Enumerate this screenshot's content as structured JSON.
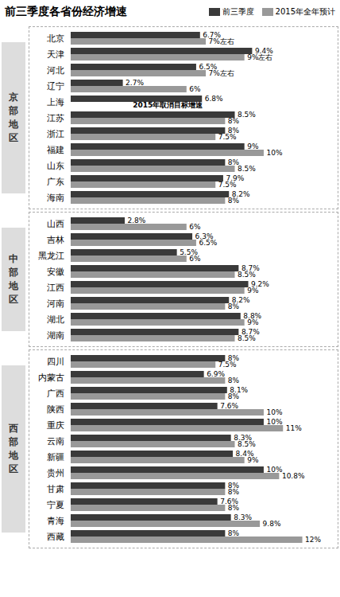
{
  "chart_data": [
    {
      "type": "bar",
      "orientation": "horizontal",
      "title": "前三季度各省份经济增速",
      "legend": "top right",
      "ylabel": "京\n部\n地\n区",
      "categories": [
        "北京",
        "天津",
        "河北",
        "辽宁",
        "上海",
        "江苏",
        "浙江",
        "福建",
        "山东",
        "广东",
        "海南"
      ],
      "series": [
        {
          "name": "前三季度",
          "color": "#3a3a3a",
          "values": [
            6.7,
            9.4,
            6.5,
            2.7,
            6.8,
            8.5,
            8.0,
            9.0,
            8.0,
            7.9,
            8.2
          ],
          "value_labels": [
            "6.7%",
            "9.4%",
            "6.5%",
            "2.7%",
            "6.8%",
            "8.5%",
            "8%",
            "9%",
            "8%",
            "7.9%",
            "8.2%"
          ]
        },
        {
          "name": "2015年全年预计",
          "color": "#999999",
          "values": [
            7.0,
            9.0,
            7.0,
            6.0,
            null,
            8.0,
            7.5,
            10.0,
            8.5,
            7.5,
            8.0
          ],
          "value_labels": [
            "7%左右",
            "9%左右",
            "7%左右",
            "6%",
            null,
            "8%",
            "7.5%",
            "10%",
            "8.5%",
            "7.5%",
            "8%"
          ]
        }
      ],
      "annotations": [
        {
          "text": "2015年取消目标增速",
          "category": "上海",
          "series": "2015年全年预计",
          "x": 3.2
        }
      ],
      "xlim": [
        0,
        13.5
      ],
      "data_labels": true,
      "tick_labels": "y",
      "grid": false
    },
    {
      "type": "bar",
      "orientation": "horizontal",
      "ylabel": "中\n部\n地\n区",
      "categories": [
        "山西",
        "吉林",
        "黑龙江",
        "安徽",
        "江西",
        "河南",
        "湖北",
        "湖南"
      ],
      "series": [
        {
          "name": "前三季度",
          "color": "#3a3a3a",
          "values": [
            2.8,
            6.3,
            5.5,
            8.7,
            9.2,
            8.2,
            8.8,
            8.7
          ],
          "value_labels": [
            "2.8%",
            "6.3%",
            "5.5%",
            "8.7%",
            "9.2%",
            "8.2%",
            "8.8%",
            "8.7%"
          ]
        },
        {
          "name": "2015年全年预计",
          "color": "#999999",
          "values": [
            6.0,
            6.5,
            6.0,
            8.5,
            9.0,
            8.0,
            9.0,
            8.5
          ],
          "value_labels": [
            "6%",
            "6.5%",
            "6%",
            "8.5%",
            "9%",
            "8%",
            "9%",
            "8.5%"
          ]
        }
      ],
      "xlim": [
        0,
        13.5
      ],
      "data_labels": true,
      "tick_labels": "y",
      "grid": false
    },
    {
      "type": "bar",
      "orientation": "horizontal",
      "ylabel": "西\n部\n地\n区",
      "categories": [
        "四川",
        "内蒙古",
        "广西",
        "陕西",
        "重庆",
        "云南",
        "新疆",
        "贵州",
        "甘肃",
        "宁夏",
        "青海",
        "西藏"
      ],
      "series": [
        {
          "name": "前三季度",
          "color": "#3a3a3a",
          "values": [
            8.0,
            6.9,
            8.1,
            7.6,
            10.0,
            8.3,
            8.4,
            10.0,
            8.0,
            7.6,
            8.3,
            8.0
          ],
          "value_labels": [
            "8%",
            "6.9%",
            "8.1%",
            "7.6%",
            "10%",
            "8.3%",
            "8.4%",
            "10%",
            "8%",
            "7.6%",
            "8.3%",
            "8%"
          ]
        },
        {
          "name": "2015年全年预计",
          "color": "#999999",
          "values": [
            7.5,
            8.0,
            8.0,
            10.0,
            11.0,
            8.5,
            9.0,
            10.8,
            8.0,
            8.0,
            9.8,
            12.0
          ],
          "value_labels": [
            "7.5%",
            "8%",
            "8%",
            "10%",
            "11%",
            "8.5%",
            "9%",
            "10.8%",
            "8%",
            "8%",
            "9.8%",
            "12%"
          ]
        }
      ],
      "xlim": [
        0,
        13.5
      ],
      "data_labels": true,
      "tick_labels": "y",
      "grid": false
    }
  ]
}
